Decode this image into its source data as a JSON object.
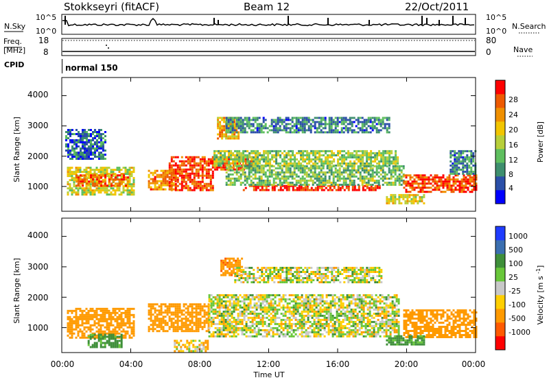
{
  "header": {
    "station": "Stokkseyri (fitACF)",
    "beam": "Beam 12",
    "date": "22/Oct/2011"
  },
  "top_strips": {
    "nsky_label": "N.Sky",
    "nsky_ticks": [
      "10^5",
      "10^0"
    ],
    "nsearch_label": "N.Search",
    "freq_label_1": "Freq.",
    "freq_label_2": "[MHz]",
    "freq_ticks": [
      "18",
      "8"
    ],
    "nave_label": "Nave",
    "nave_ticks": [
      "80",
      "0"
    ],
    "cpid_label": "CPID",
    "cpid_value": "normal 150"
  },
  "colors": {
    "power": [
      "#0000ff",
      "#2b4fa8",
      "#3e8f6e",
      "#5fbf5f",
      "#b8cf3a",
      "#f2c500",
      "#f09000",
      "#ee5a00",
      "#ff0000"
    ],
    "velocity": [
      "#ff0000",
      "#ff5a00",
      "#ff9a00",
      "#ffcf00",
      "#c8c8c8",
      "#69c73a",
      "#3f8f3a",
      "#3b6fb0",
      "#1f3cff"
    ]
  },
  "chart_data": [
    {
      "type": "heatmap",
      "title": "Power",
      "xlabel": "",
      "ylabel": "Slant Range [km]",
      "x_ticks": [
        "00:00",
        "04:00",
        "08:00",
        "12:00",
        "16:00",
        "20:00",
        "00:00"
      ],
      "x_range_hours": [
        0,
        24
      ],
      "y_ticks": [
        "1000",
        "2000",
        "3000",
        "4000"
      ],
      "y_range_km": [
        180,
        4600
      ],
      "colorbar": {
        "label": "Power [dB]",
        "ticks": [
          "4",
          "8",
          "12",
          "16",
          "20",
          "24",
          "28"
        ],
        "range": [
          0,
          30
        ]
      },
      "regions": [
        {
          "t0": 0.3,
          "t1": 4.2,
          "r0": 700,
          "r1": 1650,
          "v": 16
        },
        {
          "t0": 0.8,
          "t1": 3.9,
          "r0": 1050,
          "r1": 1400,
          "v": 24
        },
        {
          "t0": 5.0,
          "t1": 6.6,
          "r0": 900,
          "r1": 1550,
          "v": 22
        },
        {
          "t0": 6.2,
          "t1": 8.8,
          "r0": 900,
          "r1": 2000,
          "v": 26
        },
        {
          "t0": 8.6,
          "t1": 11.0,
          "r0": 1550,
          "r1": 2000,
          "v": 26
        },
        {
          "t0": 9.0,
          "t1": 10.2,
          "r0": 2600,
          "r1": 3300,
          "v": 20
        },
        {
          "t0": 8.8,
          "t1": 19.5,
          "r0": 1700,
          "r1": 2200,
          "v": 14
        },
        {
          "t0": 10.5,
          "t1": 18.5,
          "r0": 850,
          "r1": 1050,
          "v": 28
        },
        {
          "t0": 9.5,
          "t1": 19.8,
          "r0": 1050,
          "r1": 1700,
          "v": 12
        },
        {
          "t0": 9.5,
          "t1": 19.0,
          "r0": 2800,
          "r1": 3300,
          "v": 8
        },
        {
          "t0": 19.8,
          "t1": 24.0,
          "r0": 800,
          "r1": 1400,
          "v": 26
        },
        {
          "t0": 18.8,
          "t1": 21.0,
          "r0": 450,
          "r1": 750,
          "v": 16
        },
        {
          "t0": 22.5,
          "t1": 24.0,
          "r0": 1400,
          "r1": 2200,
          "v": 8
        },
        {
          "t0": 0.2,
          "t1": 2.5,
          "r0": 1900,
          "r1": 2900,
          "v": 6
        }
      ]
    },
    {
      "type": "heatmap",
      "title": "Velocity",
      "xlabel": "Time UT",
      "ylabel": "Slant Range [km]",
      "x_ticks": [
        "00:00",
        "04:00",
        "08:00",
        "12:00",
        "16:00",
        "20:00",
        "00:00"
      ],
      "x_range_hours": [
        0,
        24
      ],
      "y_ticks": [
        "1000",
        "2000",
        "3000",
        "4000"
      ],
      "y_range_km": [
        180,
        4600
      ],
      "colorbar": {
        "label": "Velocity [m s^-1]",
        "ticks": [
          "-1000",
          "-500",
          "-100",
          "-25",
          "25",
          "100",
          "500",
          "1000"
        ],
        "range": [
          -1200,
          1200
        ]
      },
      "regions": [
        {
          "t0": 0.3,
          "t1": 4.2,
          "r0": 700,
          "r1": 1650,
          "v": -300
        },
        {
          "t0": 1.5,
          "t1": 3.5,
          "r0": 350,
          "r1": 800,
          "v": 200
        },
        {
          "t0": 5.0,
          "t1": 8.5,
          "r0": 900,
          "r1": 1800,
          "v": -250
        },
        {
          "t0": 8.5,
          "t1": 19.5,
          "r0": 700,
          "r1": 2100,
          "v": 0
        },
        {
          "t0": 9.2,
          "t1": 10.5,
          "r0": 2700,
          "r1": 3300,
          "v": -400
        },
        {
          "t0": 10.0,
          "t1": 18.5,
          "r0": 2500,
          "r1": 3000,
          "v": 0
        },
        {
          "t0": 19.8,
          "t1": 24.0,
          "r0": 700,
          "r1": 1600,
          "v": -350
        },
        {
          "t0": 18.8,
          "t1": 21.0,
          "r0": 450,
          "r1": 750,
          "v": 150
        },
        {
          "t0": 6.5,
          "t1": 8.5,
          "r0": 250,
          "r1": 600,
          "v": -60
        }
      ]
    }
  ]
}
